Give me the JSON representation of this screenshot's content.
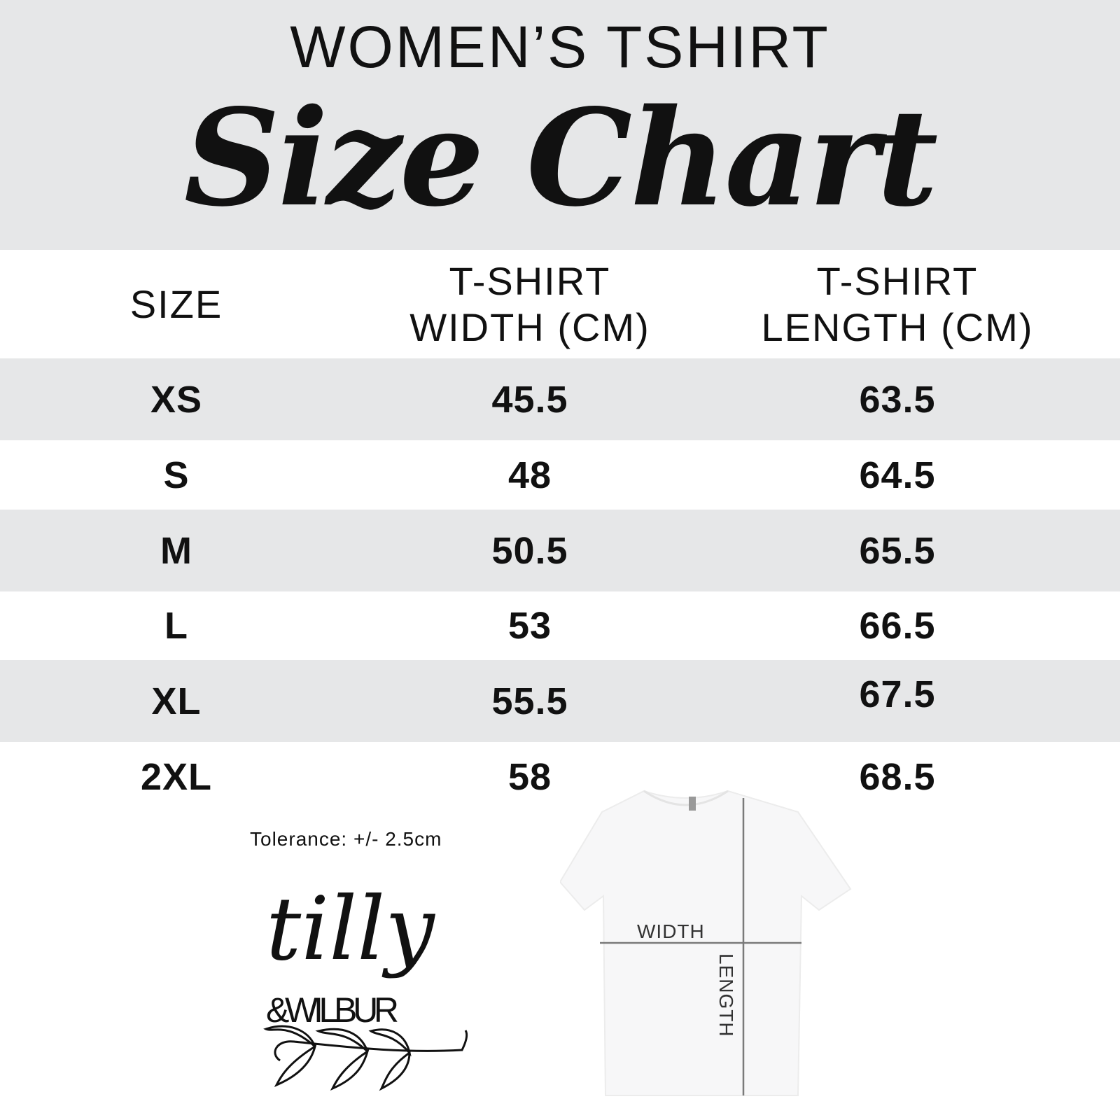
{
  "header": {
    "subtitle": "WOMEN’S TSHIRT",
    "title": "Size Chart"
  },
  "table": {
    "columns": [
      "SIZE",
      "T-SHIRT\nWIDTH (CM)",
      "T-SHIRT\nLENGTH (CM)"
    ],
    "col_width_line1": "T-SHIRT",
    "col_width_line2": "WIDTH (CM)",
    "col_length_line1": "T-SHIRT",
    "col_length_line2": "LENGTH (CM)",
    "rows": [
      {
        "size": "XS",
        "width": "45.5",
        "length": "63.5"
      },
      {
        "size": "S",
        "width": "48",
        "length": "64.5"
      },
      {
        "size": "M",
        "width": "50.5",
        "length": "65.5"
      },
      {
        "size": "L",
        "width": "53",
        "length": "66.5"
      },
      {
        "size": "XL",
        "width": "55.5",
        "length": "67.5"
      },
      {
        "size": "2XL",
        "width": "58",
        "length": "68.5"
      }
    ]
  },
  "tolerance": "Tolerance: +/- 2.5cm",
  "logo": {
    "line1": "tilly",
    "line2": "&WILBUR"
  },
  "diagram": {
    "width_label": "WIDTH",
    "length_label": "LENGTH"
  },
  "colors": {
    "band_gray": "#e6e7e8",
    "text": "#111111",
    "measure_line": "#7a7a7a"
  }
}
